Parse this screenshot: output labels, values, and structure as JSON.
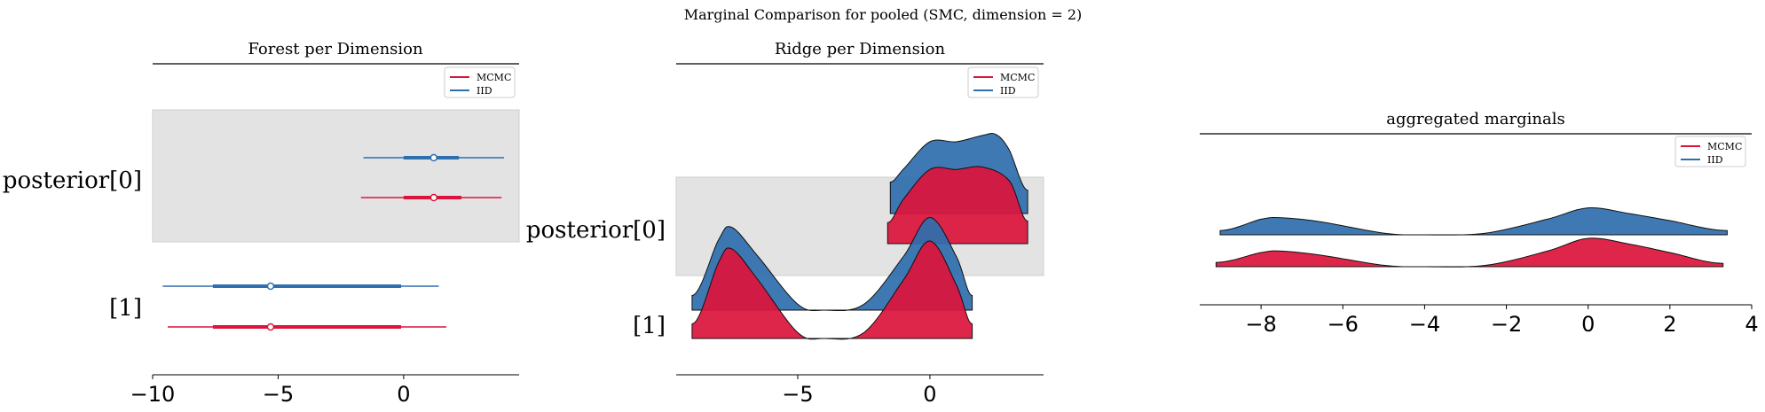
{
  "suptitle": "Marginal Comparison for pooled (SMC, dimension = 2)",
  "colors": {
    "mcmc": "#dc143c",
    "iid": "#2f6fad",
    "band": "#e3e3e3",
    "outline": "#000000"
  },
  "chart_data": [
    {
      "type": "forest",
      "title": "Forest per Dimension",
      "categories": [
        "posterior[0]",
        "[1]"
      ],
      "legend": {
        "placement": "top-right",
        "entries": [
          "MCMC",
          "IID"
        ]
      },
      "xlim": [
        -10,
        4.6
      ],
      "xticks": [
        -10,
        -5,
        0
      ],
      "xtick_labels": [
        "−10",
        "−5",
        "0"
      ],
      "series": [
        {
          "name": "IID",
          "color_key": "iid",
          "intervals": [
            {
              "category": "posterior[0]",
              "hdi": [
                -1.6,
                4.0
              ],
              "iqr": [
                0.0,
                2.2
              ],
              "point": 1.2
            },
            {
              "category": "[1]",
              "hdi": [
                -9.6,
                1.4
              ],
              "iqr": [
                -7.6,
                -0.1
              ],
              "point": -5.3
            }
          ]
        },
        {
          "name": "MCMC",
          "color_key": "mcmc",
          "intervals": [
            {
              "category": "posterior[0]",
              "hdi": [
                -1.7,
                3.9
              ],
              "iqr": [
                0.0,
                2.3
              ],
              "point": 1.2
            },
            {
              "category": "[1]",
              "hdi": [
                -9.4,
                1.7
              ],
              "iqr": [
                -7.6,
                -0.1
              ],
              "point": -5.3
            }
          ]
        }
      ]
    },
    {
      "type": "ridge",
      "title": "Ridge per Dimension",
      "categories": [
        "posterior[0]",
        "[1]"
      ],
      "legend": {
        "placement": "top-right",
        "entries": [
          "MCMC",
          "IID"
        ]
      },
      "xlim": [
        -9.6,
        4.3
      ],
      "xticks": [
        -5,
        0
      ],
      "xtick_labels": [
        "−5",
        "0"
      ],
      "series": [
        {
          "name": "IID",
          "color_key": "iid",
          "ridges": [
            {
              "category": "posterior[0]",
              "x": [
                -1.5,
                -1.5,
                -1.0,
                0.0,
                1.0,
                2.0,
                2.5,
                3.0,
                3.7,
                3.7
              ],
              "density": [
                0.0,
                0.39,
                0.55,
                0.89,
                0.89,
                0.97,
                0.98,
                0.79,
                0.29,
                0.0
              ]
            },
            {
              "category": "[1]",
              "x": [
                -9.0,
                -9.0,
                -8.0,
                -7.5,
                -6.5,
                -5.0,
                -4.0,
                -2.5,
                -1.0,
                0.0,
                1.0,
                1.6,
                1.6
              ],
              "density": [
                0.0,
                0.15,
                0.72,
                0.85,
                0.55,
                0.06,
                0.0,
                0.06,
                0.55,
                0.95,
                0.55,
                0.15,
                0.0
              ]
            }
          ]
        },
        {
          "name": "MCMC",
          "color_key": "mcmc",
          "ridges": [
            {
              "category": "posterior[0]",
              "x": [
                -1.6,
                -1.6,
                -1.0,
                0.0,
                1.0,
                2.0,
                3.0,
                3.7,
                3.7
              ],
              "density": [
                0.0,
                0.26,
                0.55,
                0.92,
                0.92,
                0.95,
                0.78,
                0.28,
                0.0
              ]
            },
            {
              "category": "[1]",
              "x": [
                -9.0,
                -9.0,
                -8.0,
                -7.5,
                -6.5,
                -5.0,
                -4.0,
                -2.5,
                -1.0,
                0.0,
                1.0,
                1.6,
                1.6
              ],
              "density": [
                0.0,
                0.15,
                0.78,
                0.92,
                0.6,
                0.06,
                0.0,
                0.06,
                0.6,
                1.0,
                0.55,
                0.15,
                0.0
              ]
            }
          ]
        }
      ]
    },
    {
      "type": "ridge",
      "title": "aggregated marginals",
      "legend": {
        "placement": "top-right",
        "entries": [
          "MCMC",
          "IID"
        ]
      },
      "xlim": [
        -9.5,
        4.0
      ],
      "xticks": [
        -8,
        -6,
        -4,
        -2,
        0,
        2,
        4
      ],
      "xtick_labels": [
        "−8",
        "−6",
        "−4",
        "−2",
        "0",
        "2",
        "4"
      ],
      "series": [
        {
          "name": "IID",
          "color_key": "iid",
          "x": [
            -9.0,
            -9.0,
            -8.0,
            -7.5,
            -6.5,
            -5.0,
            -4.0,
            -2.5,
            -1.0,
            0.0,
            1.0,
            2.0,
            3.4,
            3.4
          ],
          "density": [
            0.0,
            0.15,
            0.55,
            0.6,
            0.45,
            0.06,
            0.0,
            0.06,
            0.55,
            0.95,
            0.75,
            0.5,
            0.15,
            0.0
          ]
        },
        {
          "name": "MCMC",
          "color_key": "mcmc",
          "x": [
            -9.1,
            -9.1,
            -8.0,
            -7.5,
            -6.5,
            -5.0,
            -4.0,
            -2.5,
            -1.0,
            0.0,
            1.0,
            2.0,
            3.3,
            3.3
          ],
          "density": [
            0.0,
            0.15,
            0.5,
            0.55,
            0.4,
            0.05,
            0.0,
            0.05,
            0.55,
            1.0,
            0.8,
            0.5,
            0.12,
            0.0
          ]
        }
      ]
    }
  ]
}
